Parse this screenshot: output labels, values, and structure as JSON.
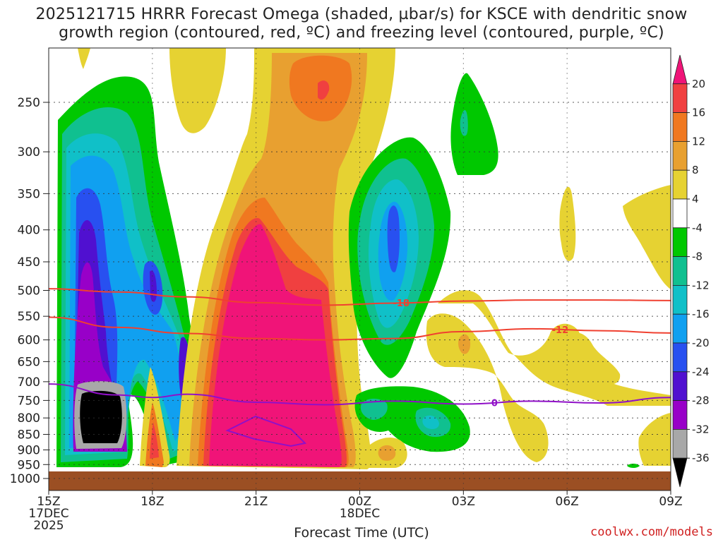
{
  "title": {
    "line1": "2025121715 HRRR Forecast Omega (shaded, µbar/s) for KSCE with dendritic snow",
    "line2": "growth region (contoured, red, ºC) and freezing level (contoured, purple, ºC)"
  },
  "xlabel": "Forecast Time (UTC)",
  "credit": "coolwx.com/models",
  "colors": {
    "ground": "#9b4f23",
    "snow_isotherm": "#f04030",
    "freezing_level": "#9010c8"
  },
  "chart_data": {
    "type": "heatmap",
    "title": "2025121715 HRRR Forecast Omega (shaded, µbar/s) for KSCE with dendritic snow growth region (contoured, red, ºC) and freezing level (contoured, purple, ºC)",
    "xlabel": "Forecast Time (UTC)",
    "ylabel": "",
    "x_ticks": [
      {
        "hour": 0,
        "lines": [
          "15Z",
          "17DEC",
          "2025"
        ]
      },
      {
        "hour": 3,
        "lines": [
          "18Z"
        ]
      },
      {
        "hour": 6,
        "lines": [
          "21Z"
        ]
      },
      {
        "hour": 9,
        "lines": [
          "00Z",
          "18DEC"
        ]
      },
      {
        "hour": 12,
        "lines": [
          "03Z"
        ]
      },
      {
        "hour": 15,
        "lines": [
          "06Z"
        ]
      },
      {
        "hour": 18,
        "lines": [
          "09Z"
        ]
      }
    ],
    "y_ticks": [
      250,
      300,
      350,
      400,
      450,
      500,
      550,
      600,
      650,
      700,
      750,
      800,
      850,
      900,
      950,
      1000
    ],
    "y_range_hpa": [
      195,
      1025
    ],
    "grid": true,
    "colorbar": {
      "labels": [
        "20",
        "16",
        "12",
        "8",
        "4",
        "-4",
        "-8",
        "-12",
        "-16",
        "-20",
        "-24",
        "-28",
        "-32",
        "-36"
      ],
      "colors": [
        "#f01478",
        "#f04040",
        "#f07820",
        "#e8a030",
        "#e6d232",
        "#ffffff",
        "#00c800",
        "#10c090",
        "#10c0c8",
        "#10a0f0",
        "#2850f0",
        "#5010d0",
        "#9800c8",
        "#a8a8a8",
        "#000000"
      ]
    },
    "contours": [
      {
        "label": "-18",
        "color": "#f04030",
        "points": [
          [
            0,
            497
          ],
          [
            2,
            503
          ],
          [
            4,
            512
          ],
          [
            6,
            523
          ],
          [
            8,
            528
          ],
          [
            10,
            524
          ],
          [
            12,
            520
          ],
          [
            14,
            518
          ],
          [
            16,
            518
          ],
          [
            18,
            519
          ]
        ],
        "label_at": 10.2
      },
      {
        "label": "-12",
        "color": "#f04030",
        "points": [
          [
            0,
            552
          ],
          [
            2,
            573
          ],
          [
            4,
            586
          ],
          [
            6,
            597
          ],
          [
            8,
            600
          ],
          [
            10,
            597
          ],
          [
            12,
            582
          ],
          [
            14,
            576
          ],
          [
            16,
            580
          ],
          [
            18,
            585
          ]
        ],
        "label_at": 14.8
      },
      {
        "label": "0",
        "color": "#9010c8",
        "points": [
          [
            0,
            706
          ],
          [
            2,
            735
          ],
          [
            3,
            742
          ],
          [
            4,
            733
          ],
          [
            6,
            755
          ],
          [
            8,
            762
          ],
          [
            10,
            752
          ],
          [
            12,
            760
          ],
          [
            14,
            752
          ],
          [
            16,
            757
          ],
          [
            18,
            742
          ]
        ],
        "label_at": 12.9
      }
    ],
    "ground_surface_hpa": 968
  }
}
